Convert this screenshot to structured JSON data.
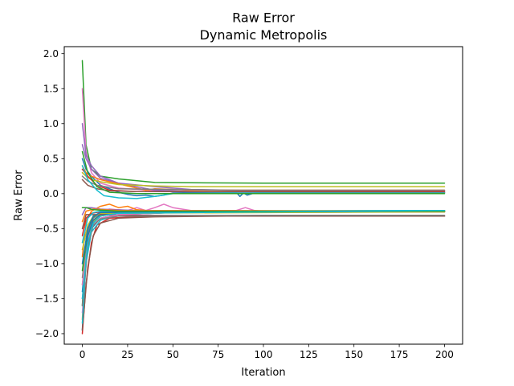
{
  "chart_data": {
    "type": "line",
    "title": "Raw Error",
    "subtitle": "Dynamic Metropolis",
    "xlabel": "Iteration",
    "ylabel": "Raw Error",
    "xlim": [
      -10,
      210
    ],
    "ylim": [
      -2.15,
      2.1
    ],
    "xticks": [
      0,
      25,
      50,
      75,
      100,
      125,
      150,
      175,
      200
    ],
    "yticks": [
      -2.0,
      -1.5,
      -1.0,
      -0.5,
      0.0,
      0.5,
      1.0,
      1.5,
      2.0
    ],
    "xtick_labels": [
      "0",
      "25",
      "50",
      "75",
      "100",
      "125",
      "150",
      "175",
      "200"
    ],
    "ytick_labels": [
      "−2.0",
      "−1.5",
      "−1.0",
      "−0.5",
      "0.0",
      "0.5",
      "1.0",
      "1.5",
      "2.0"
    ],
    "grid": false,
    "legend": "none",
    "colors": [
      "#1f77b4",
      "#ff7f0e",
      "#2ca02c",
      "#d62728",
      "#9467bd",
      "#8c564b",
      "#e377c2",
      "#7f7f7f",
      "#bcbd22",
      "#17becf"
    ],
    "note": "Approximately 40 iterative error traces starting between -2.0 and 1.9 at iteration 0 and converging by about iteration 100 to plateaus near 0.15, 0.10, 0.05, 0.02, -0.25 and -0.32.",
    "series": [
      {
        "color": "#2ca02c",
        "values": [
          [
            0,
            1.9
          ],
          [
            2,
            0.7
          ],
          [
            5,
            0.35
          ],
          [
            10,
            0.25
          ],
          [
            20,
            0.21
          ],
          [
            40,
            0.16
          ],
          [
            60,
            0.155
          ],
          [
            100,
            0.15
          ],
          [
            200,
            0.15
          ]
        ]
      },
      {
        "color": "#e377c2",
        "values": [
          [
            0,
            1.5
          ],
          [
            2,
            0.6
          ],
          [
            5,
            0.3
          ],
          [
            10,
            0.15
          ],
          [
            20,
            0.08
          ],
          [
            40,
            0.04
          ],
          [
            80,
            0.025
          ],
          [
            200,
            0.02
          ]
        ]
      },
      {
        "color": "#9467bd",
        "values": [
          [
            0,
            1.0
          ],
          [
            2,
            0.55
          ],
          [
            5,
            0.4
          ],
          [
            10,
            0.25
          ],
          [
            20,
            0.15
          ],
          [
            40,
            0.05
          ],
          [
            60,
            0.03
          ],
          [
            200,
            0.02
          ]
        ]
      },
      {
        "color": "#9467bd",
        "values": [
          [
            0,
            0.7
          ],
          [
            2,
            0.5
          ],
          [
            5,
            0.35
          ],
          [
            10,
            0.22
          ],
          [
            20,
            0.15
          ],
          [
            40,
            0.1
          ],
          [
            60,
            0.06
          ],
          [
            100,
            0.04
          ],
          [
            200,
            0.04
          ]
        ]
      },
      {
        "color": "#1f77b4",
        "values": [
          [
            0,
            0.5
          ],
          [
            2,
            0.35
          ],
          [
            5,
            0.25
          ],
          [
            10,
            0.12
          ],
          [
            20,
            0.02
          ],
          [
            25,
            -0.01
          ],
          [
            30,
            -0.03
          ],
          [
            35,
            -0.02
          ],
          [
            40,
            -0.04
          ],
          [
            45,
            -0.02
          ],
          [
            50,
            0.01
          ],
          [
            70,
            0.02
          ],
          [
            85,
            0.02
          ],
          [
            87,
            -0.04
          ],
          [
            89,
            0.01
          ],
          [
            91,
            -0.02
          ],
          [
            95,
            0.01
          ],
          [
            100,
            0.02
          ],
          [
            200,
            0.02
          ]
        ]
      },
      {
        "color": "#ff7f0e",
        "values": [
          [
            0,
            0.4
          ],
          [
            2,
            0.3
          ],
          [
            5,
            0.25
          ],
          [
            10,
            0.2
          ],
          [
            20,
            0.14
          ],
          [
            30,
            0.08
          ],
          [
            35,
            0.05
          ],
          [
            40,
            0.07
          ],
          [
            60,
            0.05
          ],
          [
            100,
            0.05
          ],
          [
            200,
            0.05
          ]
        ]
      },
      {
        "color": "#bcbd22",
        "values": [
          [
            0,
            0.3
          ],
          [
            2,
            0.25
          ],
          [
            5,
            0.2
          ],
          [
            10,
            0.17
          ],
          [
            20,
            0.13
          ],
          [
            40,
            0.11
          ],
          [
            60,
            0.1
          ],
          [
            200,
            0.1
          ]
        ]
      },
      {
        "color": "#d62728",
        "values": [
          [
            0,
            0.35
          ],
          [
            3,
            0.25
          ],
          [
            8,
            0.12
          ],
          [
            15,
            0.05
          ],
          [
            30,
            0.03
          ],
          [
            60,
            0.03
          ],
          [
            200,
            0.03
          ]
        ]
      },
      {
        "color": "#8c564b",
        "values": [
          [
            0,
            0.2
          ],
          [
            3,
            0.12
          ],
          [
            8,
            0.07
          ],
          [
            15,
            0.04
          ],
          [
            30,
            0.03
          ],
          [
            200,
            0.02
          ]
        ]
      },
      {
        "color": "#7f7f7f",
        "values": [
          [
            0,
            0.25
          ],
          [
            3,
            0.18
          ],
          [
            8,
            0.12
          ],
          [
            20,
            0.07
          ],
          [
            50,
            0.06
          ],
          [
            80,
            0.05
          ],
          [
            200,
            0.05
          ]
        ]
      },
      {
        "color": "#17becf",
        "values": [
          [
            0,
            0.4
          ],
          [
            3,
            0.2
          ],
          [
            8,
            0.05
          ],
          [
            12,
            -0.03
          ],
          [
            20,
            -0.06
          ],
          [
            30,
            -0.07
          ],
          [
            40,
            -0.04
          ],
          [
            50,
            0.0
          ],
          [
            80,
            0.01
          ],
          [
            200,
            0.01
          ]
        ]
      },
      {
        "color": "#2ca02c",
        "values": [
          [
            0,
            0.6
          ],
          [
            3,
            0.3
          ],
          [
            8,
            0.1
          ],
          [
            15,
            0.02
          ],
          [
            30,
            0.0
          ],
          [
            200,
            0.0
          ]
        ]
      },
      {
        "color": "#1f77b4",
        "values": [
          [
            0,
            -1.95
          ],
          [
            2,
            -0.9
          ],
          [
            5,
            -0.5
          ],
          [
            10,
            -0.35
          ],
          [
            20,
            -0.3
          ],
          [
            40,
            -0.28
          ],
          [
            60,
            -0.26
          ],
          [
            100,
            -0.25
          ],
          [
            200,
            -0.25
          ]
        ]
      },
      {
        "color": "#ff7f0e",
        "values": [
          [
            0,
            -1.8
          ],
          [
            2,
            -0.8
          ],
          [
            5,
            -0.45
          ],
          [
            10,
            -0.32
          ],
          [
            20,
            -0.27
          ],
          [
            50,
            -0.25
          ],
          [
            200,
            -0.25
          ]
        ]
      },
      {
        "color": "#2ca02c",
        "values": [
          [
            0,
            -1.6
          ],
          [
            2,
            -0.7
          ],
          [
            5,
            -0.4
          ],
          [
            10,
            -0.3
          ],
          [
            20,
            -0.27
          ],
          [
            50,
            -0.26
          ],
          [
            200,
            -0.26
          ]
        ]
      },
      {
        "color": "#d62728",
        "values": [
          [
            0,
            -2.0
          ],
          [
            2,
            -1.3
          ],
          [
            5,
            -0.7
          ],
          [
            8,
            -0.45
          ],
          [
            15,
            -0.35
          ],
          [
            30,
            -0.33
          ],
          [
            60,
            -0.32
          ],
          [
            200,
            -0.32
          ]
        ]
      },
      {
        "color": "#9467bd",
        "values": [
          [
            0,
            -1.5
          ],
          [
            3,
            -0.7
          ],
          [
            6,
            -0.45
          ],
          [
            10,
            -0.35
          ],
          [
            20,
            -0.3
          ],
          [
            50,
            -0.27
          ],
          [
            200,
            -0.26
          ]
        ]
      },
      {
        "color": "#8c564b",
        "values": [
          [
            0,
            -1.95
          ],
          [
            3,
            -1.05
          ],
          [
            6,
            -0.6
          ],
          [
            10,
            -0.42
          ],
          [
            20,
            -0.35
          ],
          [
            40,
            -0.33
          ],
          [
            80,
            -0.32
          ],
          [
            200,
            -0.32
          ]
        ]
      },
      {
        "color": "#e377c2",
        "values": [
          [
            0,
            -1.7
          ],
          [
            3,
            -0.65
          ],
          [
            6,
            -0.35
          ],
          [
            10,
            -0.25
          ],
          [
            15,
            -0.22
          ],
          [
            25,
            -0.24
          ],
          [
            30,
            -0.2
          ],
          [
            35,
            -0.24
          ],
          [
            40,
            -0.2
          ],
          [
            45,
            -0.15
          ],
          [
            50,
            -0.2
          ],
          [
            60,
            -0.24
          ],
          [
            85,
            -0.24
          ],
          [
            90,
            -0.2
          ],
          [
            95,
            -0.24
          ],
          [
            100,
            -0.25
          ],
          [
            200,
            -0.25
          ]
        ]
      },
      {
        "color": "#7f7f7f",
        "values": [
          [
            0,
            -1.2
          ],
          [
            3,
            -0.55
          ],
          [
            6,
            -0.35
          ],
          [
            10,
            -0.28
          ],
          [
            20,
            -0.26
          ],
          [
            200,
            -0.25
          ]
        ]
      },
      {
        "color": "#bcbd22",
        "values": [
          [
            0,
            -1.3
          ],
          [
            3,
            -0.6
          ],
          [
            6,
            -0.4
          ],
          [
            10,
            -0.3
          ],
          [
            20,
            -0.27
          ],
          [
            200,
            -0.26
          ]
        ]
      },
      {
        "color": "#17becf",
        "values": [
          [
            0,
            -1.85
          ],
          [
            2,
            -1.0
          ],
          [
            5,
            -0.55
          ],
          [
            10,
            -0.38
          ],
          [
            20,
            -0.3
          ],
          [
            40,
            -0.27
          ],
          [
            100,
            -0.25
          ],
          [
            200,
            -0.24
          ]
        ]
      },
      {
        "color": "#1f77b4",
        "values": [
          [
            0,
            -1.4
          ],
          [
            3,
            -0.6
          ],
          [
            6,
            -0.38
          ],
          [
            10,
            -0.3
          ],
          [
            20,
            -0.27
          ],
          [
            40,
            -0.26
          ],
          [
            200,
            -0.25
          ]
        ]
      },
      {
        "color": "#ff7f0e",
        "values": [
          [
            0,
            -0.9
          ],
          [
            2,
            -0.4
          ],
          [
            5,
            -0.25
          ],
          [
            10,
            -0.18
          ],
          [
            15,
            -0.15
          ],
          [
            20,
            -0.2
          ],
          [
            25,
            -0.18
          ],
          [
            30,
            -0.23
          ],
          [
            40,
            -0.25
          ],
          [
            200,
            -0.25
          ]
        ]
      },
      {
        "color": "#2ca02c",
        "values": [
          [
            0,
            -1.1
          ],
          [
            3,
            -0.5
          ],
          [
            6,
            -0.33
          ],
          [
            10,
            -0.28
          ],
          [
            20,
            -0.26
          ],
          [
            200,
            -0.25
          ]
        ]
      },
      {
        "color": "#d62728",
        "values": [
          [
            0,
            -0.6
          ],
          [
            2,
            -0.35
          ],
          [
            5,
            -0.28
          ],
          [
            10,
            -0.26
          ],
          [
            200,
            -0.25
          ]
        ]
      },
      {
        "color": "#9467bd",
        "values": [
          [
            0,
            -0.3
          ],
          [
            2,
            -0.2
          ],
          [
            5,
            -0.2
          ],
          [
            10,
            -0.22
          ],
          [
            30,
            -0.24
          ],
          [
            200,
            -0.25
          ]
        ]
      },
      {
        "color": "#8c564b",
        "values": [
          [
            0,
            -0.5
          ],
          [
            2,
            -0.3
          ],
          [
            5,
            -0.3
          ],
          [
            10,
            -0.3
          ],
          [
            30,
            -0.31
          ],
          [
            200,
            -0.32
          ]
        ]
      },
      {
        "color": "#e377c2",
        "values": [
          [
            0,
            -1.3
          ],
          [
            3,
            -0.7
          ],
          [
            6,
            -0.45
          ],
          [
            10,
            -0.35
          ],
          [
            20,
            -0.3
          ],
          [
            50,
            -0.27
          ],
          [
            200,
            -0.26
          ]
        ]
      },
      {
        "color": "#7f7f7f",
        "values": [
          [
            0,
            -1.6
          ],
          [
            3,
            -0.75
          ],
          [
            6,
            -0.45
          ],
          [
            10,
            -0.36
          ],
          [
            20,
            -0.32
          ],
          [
            100,
            -0.31
          ],
          [
            200,
            -0.31
          ]
        ]
      },
      {
        "color": "#bcbd22",
        "values": [
          [
            0,
            -0.8
          ],
          [
            3,
            -0.45
          ],
          [
            6,
            -0.32
          ],
          [
            10,
            -0.28
          ],
          [
            200,
            -0.26
          ]
        ]
      },
      {
        "color": "#17becf",
        "values": [
          [
            0,
            -0.7
          ],
          [
            3,
            -0.35
          ],
          [
            6,
            -0.27
          ],
          [
            10,
            -0.25
          ],
          [
            200,
            -0.24
          ]
        ]
      },
      {
        "color": "#1f77b4",
        "values": [
          [
            0,
            -1.0
          ],
          [
            3,
            -0.5
          ],
          [
            6,
            -0.32
          ],
          [
            10,
            -0.27
          ],
          [
            200,
            -0.25
          ]
        ]
      },
      {
        "color": "#ff7f0e",
        "values": [
          [
            0,
            -0.4
          ],
          [
            2,
            -0.25
          ],
          [
            6,
            -0.22
          ],
          [
            20,
            -0.24
          ],
          [
            200,
            -0.25
          ]
        ]
      },
      {
        "color": "#2ca02c",
        "values": [
          [
            0,
            -0.2
          ],
          [
            2,
            -0.2
          ],
          [
            6,
            -0.23
          ],
          [
            20,
            -0.25
          ],
          [
            200,
            -0.25
          ]
        ]
      },
      {
        "color": "#17becf",
        "values": [
          [
            0,
            -1.5
          ],
          [
            3,
            -0.7
          ],
          [
            6,
            -0.42
          ],
          [
            10,
            -0.32
          ],
          [
            20,
            -0.28
          ],
          [
            200,
            -0.24
          ]
        ]
      }
    ]
  }
}
